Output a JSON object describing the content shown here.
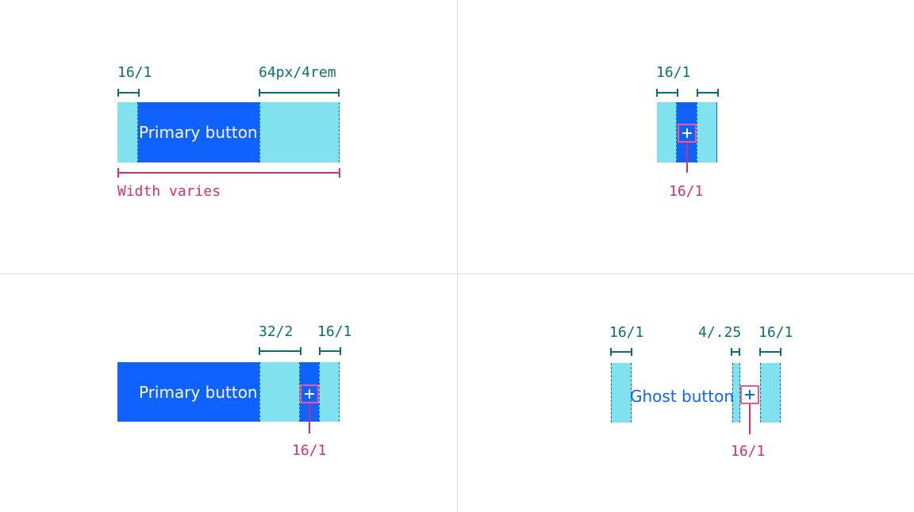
{
  "panel_top_left": {
    "button_label": "Primary button",
    "left_padding_label": "16/1",
    "right_padding_label": "64px/4rem",
    "width_label": "Width varies"
  },
  "panel_top_right": {
    "padding_label": "16/1",
    "icon_label": "16/1"
  },
  "panel_bottom_left": {
    "button_label": "Primary button",
    "gap_label": "32/2",
    "padding_label": "16/1",
    "icon_label": "16/1"
  },
  "panel_bottom_right": {
    "button_label": "Ghost button",
    "left_padding_label": "16/1",
    "gap_label": "4/.25",
    "right_padding_label": "16/1",
    "icon_label": "16/1"
  },
  "colors": {
    "primary_blue": "#0f62fe",
    "padding_cyan": "#82e1ee",
    "measure_teal": "#0b6e6e",
    "annotation_pink": "#d62d6e"
  },
  "icons": [
    "add-icon"
  ]
}
